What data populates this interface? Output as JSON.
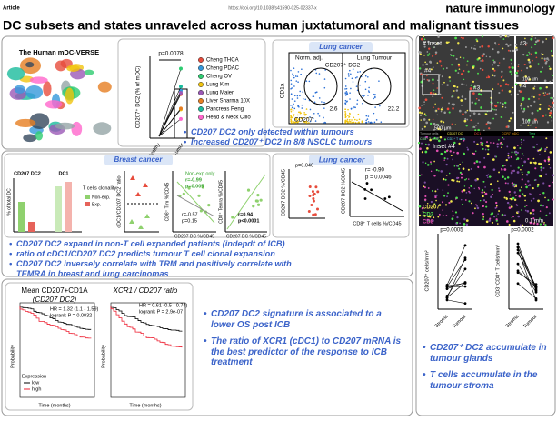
{
  "header": {
    "section": "Article",
    "doi": "https://doi.org/10.1038/s41590-025-02337-x",
    "journal": "nature immunology"
  },
  "title": "DC subsets and states unraveled across human juxtatumoral and malignant tissues",
  "panel1": {
    "atlas_title": "The Human mDC-VERSE",
    "plot": {
      "p": "p=0.0078",
      "ylabel": "CD207⁺ DC2 (% of mDC)",
      "xlabels": [
        "Healthy",
        "Tumor"
      ]
    },
    "legend": [
      "Cheng THCA",
      "Cheng PDAC",
      "Cheng OV",
      "Lung Kim",
      "Lung Maier",
      "Liver Sharma 10X",
      "Pancreas Peng",
      "Head & Neck Cillo"
    ],
    "lung": {
      "title": "Lung cancer",
      "norm": "Norm. adj.",
      "tumour": "Lung Tumour",
      "gate": "CD207⁺ DC2",
      "ylabel": "CD1a",
      "xlabel": "CD207",
      "v1": "2.6",
      "v2": "22.2"
    },
    "bullets": [
      "CD207 DC2 only detected within tumours",
      "Increased CD207⁺ DC2 in 8/8 NSCLC tumours"
    ]
  },
  "panel2": {
    "breast": {
      "title": "Breast cancer",
      "bar_titles": [
        "CD207 DC2",
        "DC1"
      ],
      "ylabel": "% of total DC",
      "clonality": "T cells clonality:",
      "clon_labels": [
        "Non-exp.",
        "Exp."
      ],
      "ratio_label": "cDC1/CD207 DC2 ratio",
      "corr1": {
        "note": "Non-exp only",
        "r1": "r=-0.99",
        "p1": "p=0.005",
        "r2": "r=-0.57",
        "p2": "p=0.15",
        "ylabel": "CD8⁺ Trm %/CD45",
        "xlabel": "CD207 DC %/CD45"
      },
      "corr2": {
        "r": "r=0.94",
        "p": "p<0.0001",
        "ylabel": "CD8⁺ Temra %/CD45",
        "xlabel": "CD207 DC %/CD45"
      }
    },
    "lung": {
      "title": "Lung cancer",
      "p": "p=0.046",
      "ylabel": "CD207 DC2 %/CD45",
      "r": "r= -0.90",
      "pr": "p = 0.0046",
      "ylabel2": "CD207 DC2 %CD45",
      "xlabel2": "CD8⁺ T cells %/CD45"
    },
    "bullets": [
      "CD207 DC2 expand in non-T cell expanded patients (indepdt of ICB)",
      "ratio of cDC1/CD207 DC2 predicts tumour T cell clonal expansion",
      "CD207 DC2 inversely correlate with TRM and positively correlate with TEMRA in breast and lung carcinomas"
    ]
  },
  "panel3": {
    "km1": {
      "title": "Mean CD207+CD1A",
      "subtitle": "(CD207 DC2)",
      "hr": "HR = 1.32 (1.1 - 1.59)",
      "p": "logrank P = 0.0032"
    },
    "km2": {
      "title": "XCR1 / CD207 ratio",
      "hr": "HR = 0.61 (0.5 - 0.74)",
      "p": "logrank P = 2.9e-07"
    },
    "ylabel": "Probability",
    "xlabel": "Time (months)",
    "legend_title": "Expression",
    "legend": [
      "low",
      "high"
    ],
    "bullets": [
      "CD207 DC2 signature is associated to a lower OS post ICB",
      "The ratio of XCR1 (cDC1) to CD207 mRNA is the best predictor of the response to ICB treatment"
    ]
  },
  "panel4": {
    "inset": "# Inset",
    "n3": "#3",
    "n4": "#4",
    "scale1": "500 µm",
    "scale2": "100 µm",
    "inset4": "Inset #4",
    "scale3": "0.1 mm",
    "markers": [
      "Tumour cells",
      "CD207 DC",
      "DC1",
      "CCR7 mDC",
      "Treg",
      "CD8⁺ T cells",
      "CD3⁺ T cells"
    ],
    "stain": [
      "CD207",
      "CD3",
      "CD8"
    ],
    "p1": "p=0.0005",
    "p2": "p=0.0002",
    "ylabel1": "CD207⁺ cells/mm²",
    "ylabel2": "CD3⁺CD8⁺ T cells/mm²",
    "xlabels": [
      "Stroma",
      "Tumour"
    ],
    "bullets": [
      "CD207⁺ DC2 accumulate in tumour glands",
      "T cells accumulate in the tumour stroma"
    ]
  }
}
